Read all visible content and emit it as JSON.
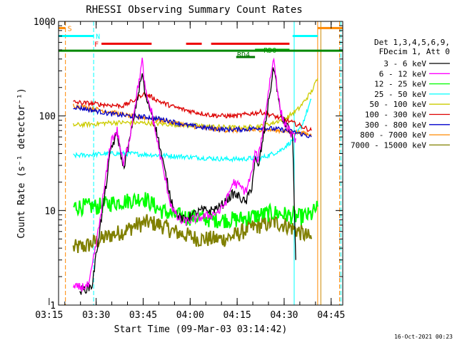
{
  "chart_data": {
    "type": "line",
    "title": "RHESSI Observing Summary Count Rates",
    "xlabel": "Start Time (09-Mar-03 03:14:42)",
    "ylabel": "Count Rate (s⁻¹ detector⁻¹)",
    "scale_y": "log",
    "ylim": [
      1,
      1000
    ],
    "xlim_minutes": [
      3.3,
      94.0
    ],
    "y_ticks": [
      {
        "value": 1,
        "label": "1"
      },
      {
        "value": 10,
        "label": "10"
      },
      {
        "value": 100,
        "label": "100"
      },
      {
        "value": 1000,
        "label": "1000"
      }
    ],
    "x_ticks": [
      {
        "value": 0.3,
        "label": "03:15"
      },
      {
        "value": 15.3,
        "label": "03:30"
      },
      {
        "value": 30.3,
        "label": "03:45"
      },
      {
        "value": 45.3,
        "label": "04:00"
      },
      {
        "value": 60.3,
        "label": "04:15"
      },
      {
        "value": 75.3,
        "label": "04:30"
      },
      {
        "value": 90.3,
        "label": "04:45"
      }
    ],
    "legend_header": [
      "Det 1,3,4,5,6,9,",
      "FDecim 1, Att 0"
    ],
    "legend_position": "right",
    "timestamp": "16-Oct-2021 00:23",
    "series": [
      {
        "name": "3 - 6 keV",
        "color": "#000000",
        "points": [
          [
            10,
            1.4
          ],
          [
            14,
            1.6
          ],
          [
            16,
            5
          ],
          [
            18,
            14
          ],
          [
            20,
            45
          ],
          [
            22,
            65
          ],
          [
            24,
            28
          ],
          [
            26,
            55
          ],
          [
            28,
            130
          ],
          [
            30,
            280
          ],
          [
            31,
            160
          ],
          [
            33,
            110
          ],
          [
            35,
            60
          ],
          [
            37,
            28
          ],
          [
            39,
            14
          ],
          [
            41,
            9
          ],
          [
            43,
            8
          ],
          [
            46,
            9
          ],
          [
            49,
            10
          ],
          [
            52,
            10
          ],
          [
            55,
            11
          ],
          [
            57,
            13
          ],
          [
            59,
            15
          ],
          [
            61,
            14
          ],
          [
            63,
            12
          ],
          [
            65,
            18
          ],
          [
            66,
            35
          ],
          [
            67,
            28
          ],
          [
            69,
            70
          ],
          [
            71,
            200
          ],
          [
            72,
            330
          ],
          [
            73,
            200
          ],
          [
            74,
            110
          ],
          [
            75,
            90
          ],
          [
            76,
            80
          ],
          [
            77,
            70
          ],
          [
            78,
            60
          ],
          [
            79,
            3
          ]
        ]
      },
      {
        "name": "6 - 12 keV",
        "color": "#ff00ff",
        "points": [
          [
            8,
            1.5
          ],
          [
            13,
            1.6
          ],
          [
            16,
            6
          ],
          [
            18,
            18
          ],
          [
            20,
            55
          ],
          [
            22,
            70
          ],
          [
            24,
            30
          ],
          [
            26,
            60
          ],
          [
            28,
            150
          ],
          [
            30,
            380
          ],
          [
            31,
            180
          ],
          [
            33,
            110
          ],
          [
            35,
            50
          ],
          [
            37,
            24
          ],
          [
            39,
            12
          ],
          [
            41,
            8.5
          ],
          [
            43,
            7.5
          ],
          [
            46,
            8
          ],
          [
            49,
            8.5
          ],
          [
            52,
            9
          ],
          [
            55,
            10
          ],
          [
            57,
            13
          ],
          [
            59,
            20
          ],
          [
            61,
            18
          ],
          [
            63,
            16
          ],
          [
            65,
            25
          ],
          [
            66,
            40
          ],
          [
            67,
            35
          ],
          [
            69,
            90
          ],
          [
            71,
            270
          ],
          [
            72,
            400
          ],
          [
            73,
            220
          ],
          [
            74,
            120
          ],
          [
            75,
            90
          ],
          [
            76,
            80
          ],
          [
            77,
            70
          ],
          [
            78,
            60
          ],
          [
            79,
            58
          ]
        ]
      },
      {
        "name": "12 - 25 keV",
        "color": "#00ff00",
        "points": [
          [
            8,
            11
          ],
          [
            12,
            11
          ],
          [
            16,
            11
          ],
          [
            20,
            12
          ],
          [
            24,
            12.5
          ],
          [
            28,
            13
          ],
          [
            30,
            14
          ],
          [
            32,
            12.5
          ],
          [
            36,
            10
          ],
          [
            40,
            9
          ],
          [
            44,
            8.5
          ],
          [
            48,
            8.5
          ],
          [
            52,
            8
          ],
          [
            56,
            8
          ],
          [
            60,
            8
          ],
          [
            64,
            8.5
          ],
          [
            68,
            9
          ],
          [
            72,
            9.5
          ],
          [
            76,
            9
          ],
          [
            80,
            8.5
          ],
          [
            84,
            9
          ],
          [
            86,
            11
          ]
        ]
      },
      {
        "name": "25 - 50 keV",
        "color": "#00ffff",
        "points": [
          [
            8,
            38
          ],
          [
            14,
            39
          ],
          [
            20,
            40
          ],
          [
            26,
            40
          ],
          [
            32,
            39
          ],
          [
            38,
            38
          ],
          [
            44,
            37
          ],
          [
            50,
            36
          ],
          [
            56,
            35
          ],
          [
            62,
            35
          ],
          [
            66,
            36
          ],
          [
            68,
            36
          ],
          [
            70,
            38
          ],
          [
            74,
            43
          ],
          [
            78,
            55
          ],
          [
            81,
            80
          ],
          [
            84,
            150
          ]
        ]
      },
      {
        "name": "50 - 100 keV",
        "color": "#cccc00",
        "points": [
          [
            8,
            80
          ],
          [
            14,
            82
          ],
          [
            20,
            85
          ],
          [
            26,
            85
          ],
          [
            32,
            84
          ],
          [
            38,
            82
          ],
          [
            44,
            80
          ],
          [
            50,
            78
          ],
          [
            56,
            76
          ],
          [
            62,
            75
          ],
          [
            68,
            78
          ],
          [
            72,
            85
          ],
          [
            76,
            95
          ],
          [
            80,
            120
          ],
          [
            84,
            180
          ],
          [
            86,
            250
          ]
        ]
      },
      {
        "name": "100 - 300 keV",
        "color": "#dd0000",
        "points": [
          [
            8,
            140
          ],
          [
            14,
            135
          ],
          [
            20,
            130
          ],
          [
            24,
            128
          ],
          [
            28,
            150
          ],
          [
            30,
            170
          ],
          [
            32,
            165
          ],
          [
            36,
            140
          ],
          [
            40,
            125
          ],
          [
            44,
            115
          ],
          [
            48,
            108
          ],
          [
            52,
            102
          ],
          [
            56,
            100
          ],
          [
            60,
            100
          ],
          [
            64,
            105
          ],
          [
            68,
            110
          ],
          [
            72,
            100
          ],
          [
            76,
            90
          ],
          [
            80,
            80
          ],
          [
            84,
            70
          ]
        ]
      },
      {
        "name": "300 - 800 keV",
        "color": "#0000cc",
        "points": [
          [
            8,
            125
          ],
          [
            14,
            115
          ],
          [
            20,
            105
          ],
          [
            26,
            100
          ],
          [
            32,
            97
          ],
          [
            38,
            90
          ],
          [
            44,
            80
          ],
          [
            50,
            75
          ],
          [
            56,
            72
          ],
          [
            62,
            72
          ],
          [
            68,
            75
          ],
          [
            74,
            72
          ],
          [
            78,
            68
          ],
          [
            82,
            63
          ],
          [
            84,
            60
          ]
        ]
      },
      {
        "name": "800 - 7000 keV",
        "color": "#ff8800",
        "points": [
          [
            8,
            130
          ],
          [
            14,
            120
          ],
          [
            20,
            110
          ],
          [
            26,
            100
          ],
          [
            32,
            95
          ],
          [
            38,
            88
          ],
          [
            44,
            80
          ],
          [
            50,
            74
          ],
          [
            56,
            71
          ],
          [
            62,
            70
          ],
          [
            68,
            72
          ],
          [
            74,
            70
          ],
          [
            78,
            68
          ],
          [
            82,
            65
          ],
          [
            84,
            62
          ]
        ]
      },
      {
        "name": "7000 - 15000 keV",
        "color": "#808000",
        "points": [
          [
            8,
            4
          ],
          [
            12,
            4.2
          ],
          [
            16,
            4.8
          ],
          [
            20,
            5.5
          ],
          [
            24,
            6
          ],
          [
            28,
            7
          ],
          [
            32,
            7.5
          ],
          [
            36,
            7
          ],
          [
            40,
            6
          ],
          [
            44,
            5.5
          ],
          [
            48,
            5
          ],
          [
            52,
            5
          ],
          [
            56,
            5
          ],
          [
            60,
            5.5
          ],
          [
            64,
            6.5
          ],
          [
            68,
            7
          ],
          [
            72,
            7.5
          ],
          [
            76,
            7
          ],
          [
            80,
            6
          ],
          [
            84,
            5
          ]
        ]
      }
    ],
    "flags": [
      {
        "label": "S",
        "color": "#ff8800",
        "y": 850,
        "segments": [
          [
            0,
            5.5
          ],
          [
            86,
            94
          ]
        ]
      },
      {
        "label": "N",
        "color": "#00ffff",
        "y": 700,
        "segments": [
          [
            0,
            14.5
          ],
          [
            78,
            86
          ]
        ]
      },
      {
        "label": "F",
        "color": "#ee0000",
        "y": 580,
        "segments": [
          [
            17,
            33
          ],
          [
            44,
            49
          ],
          [
            52,
            77
          ]
        ]
      },
      {
        "label": "RD0",
        "color": "#00aa00",
        "y": 500,
        "segments": [
          [
            66,
            77
          ]
        ]
      },
      {
        "label": "RD4",
        "color": "#007700",
        "y": 420,
        "segments": [
          [
            60,
            66
          ]
        ]
      },
      {
        "label": "",
        "color": "#008800",
        "y": 490,
        "segments": [
          [
            0,
            94
          ]
        ]
      }
    ],
    "vertical_lines": [
      {
        "x": 5.5,
        "color": "#ff8800",
        "dashed": true
      },
      {
        "x": 14.5,
        "color": "#00ffff",
        "dashed": true
      },
      {
        "x": 78.5,
        "color": "#00ffff",
        "dashed": false
      },
      {
        "x": 86.0,
        "color": "#ff8800",
        "dashed": false
      },
      {
        "x": 87.0,
        "color": "#cc8800",
        "dashed": false
      },
      {
        "x": 93.0,
        "color": "#ff8800",
        "dashed": true
      },
      {
        "x": 93.4,
        "color": "#00ffff",
        "dashed": true
      }
    ]
  }
}
